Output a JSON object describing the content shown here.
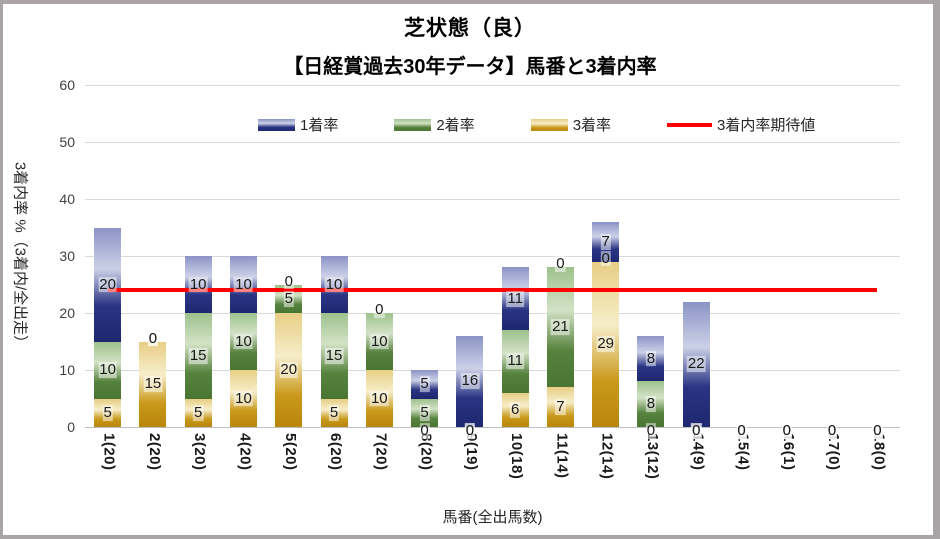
{
  "window": {
    "background": "#FFFFFF",
    "border_color": "#A9A5A7"
  },
  "chart_data": {
    "type": "bar",
    "stacked": true,
    "title": "芝状態（良）",
    "subtitle": "【日経賞過去30年データ】馬番と3着内率",
    "x_axis_title": "馬番(全出馬数)",
    "y_axis_title": "3着内率 %（3着内/全出走）",
    "legend_position": "top",
    "grid": true,
    "grid_color": "#D9D9D9",
    "axis_line_color": "#BFBFBF",
    "ylim": [
      0,
      60
    ],
    "yticks": [
      0,
      10,
      20,
      30,
      40,
      50,
      60
    ],
    "categories": [
      "1(20)",
      "2(20)",
      "3(20)",
      "4(20)",
      "5(20)",
      "6(20)",
      "7(20)",
      "8(20)",
      "9(19)",
      "10(18)",
      "11(14)",
      "12(14)",
      "13(12)",
      "14(9)",
      "15(4)",
      "16(1)",
      "17(0)",
      "18(0)"
    ],
    "series": [
      {
        "name": "1着率",
        "stack_level": "top",
        "color_mid": "#8B93C5",
        "color_light": "#CCD1E7",
        "color_dark": "#1E2870",
        "values": [
          20,
          0,
          10,
          10,
          0,
          10,
          0,
          5,
          16,
          11,
          0,
          7,
          8,
          22,
          0,
          0,
          0,
          0
        ]
      },
      {
        "name": "2着率",
        "stack_level": "middle",
        "color_mid": "#9DC18C",
        "color_light": "#D3E2C6",
        "color_dark": "#4A7634",
        "values": [
          10,
          0,
          15,
          10,
          5,
          15,
          10,
          5,
          0,
          11,
          21,
          0,
          8,
          0,
          0,
          0,
          0,
          0
        ]
      },
      {
        "name": "3着率",
        "stack_level": "bottom",
        "color_mid": "#E8CE85",
        "color_light": "#F6EDC9",
        "color_dark": "#B8860B",
        "values": [
          5,
          15,
          5,
          10,
          20,
          5,
          10,
          0,
          0,
          6,
          7,
          29,
          0,
          0,
          0,
          0,
          0,
          0
        ]
      }
    ],
    "line_series": {
      "name": "3着内率期待値",
      "value": 24,
      "color": "#FF0000"
    }
  }
}
